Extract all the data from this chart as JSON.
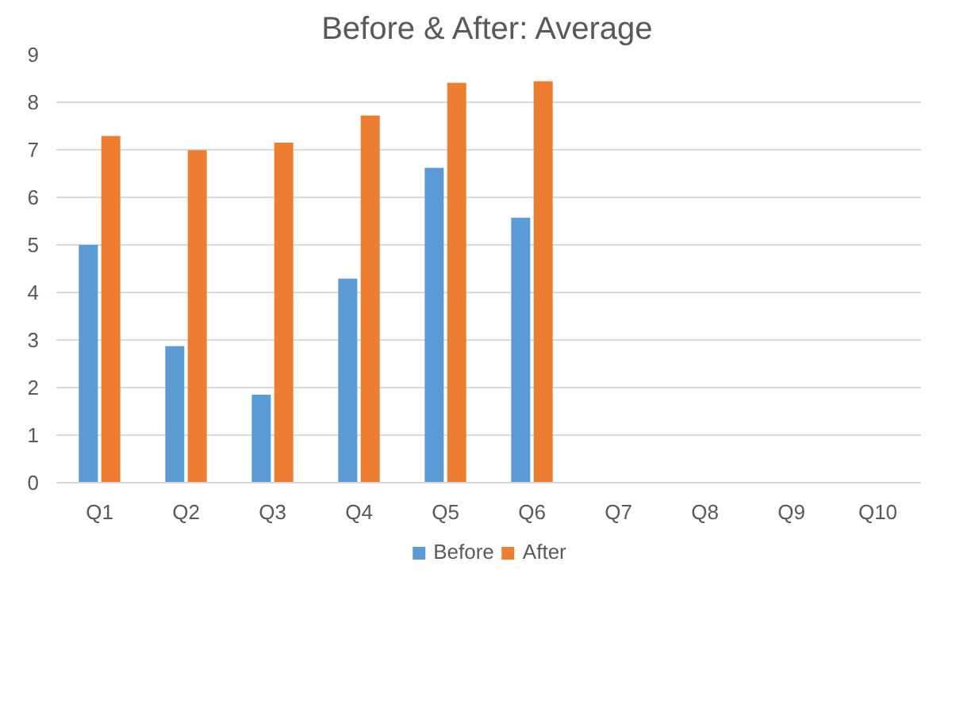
{
  "chart_data": {
    "type": "bar",
    "title": "Before & After: Average",
    "categories": [
      "Q1",
      "Q2",
      "Q3",
      "Q4",
      "Q5",
      "Q6",
      "Q7",
      "Q8",
      "Q9",
      "Q10"
    ],
    "series": [
      {
        "name": "Before",
        "color": "#5b9bd5",
        "values": [
          5.0,
          2.87,
          1.85,
          4.29,
          6.62,
          5.57,
          null,
          null,
          null,
          null
        ]
      },
      {
        "name": "After",
        "color": "#ed7d31",
        "values": [
          7.29,
          6.99,
          7.15,
          7.72,
          8.41,
          8.44,
          null,
          null,
          null,
          null
        ]
      }
    ],
    "ylim": [
      0,
      9
    ],
    "yticks": [
      0,
      1,
      2,
      3,
      4,
      5,
      6,
      7,
      8,
      9
    ],
    "grid": "y",
    "legend": "bottom"
  }
}
